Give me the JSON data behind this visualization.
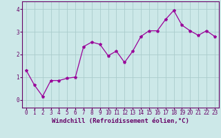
{
  "x": [
    0,
    1,
    2,
    3,
    4,
    5,
    6,
    7,
    8,
    9,
    10,
    11,
    12,
    13,
    14,
    15,
    16,
    17,
    18,
    19,
    20,
    21,
    22,
    23
  ],
  "y": [
    1.3,
    0.65,
    0.15,
    0.85,
    0.85,
    0.95,
    1.0,
    2.35,
    2.55,
    2.45,
    1.95,
    2.15,
    1.65,
    2.15,
    2.8,
    3.05,
    3.05,
    3.55,
    3.95,
    3.3,
    3.05,
    2.85,
    3.05,
    2.8
  ],
  "line_color": "#990099",
  "marker": "*",
  "marker_size": 3,
  "bg_color": "#cce8e8",
  "grid_color": "#aacccc",
  "xlabel": "Windchill (Refroidissement éolien,°C)",
  "xlabel_color": "#660066",
  "xlim": [
    -0.5,
    23.5
  ],
  "ylim": [
    -0.35,
    4.35
  ],
  "yticks": [
    0,
    1,
    2,
    3,
    4
  ],
  "xticks": [
    0,
    1,
    2,
    3,
    4,
    5,
    6,
    7,
    8,
    9,
    10,
    11,
    12,
    13,
    14,
    15,
    16,
    17,
    18,
    19,
    20,
    21,
    22,
    23
  ],
  "tick_color": "#660066",
  "tick_fontsize": 5.5,
  "xlabel_fontsize": 6.5,
  "spine_color": "#660066",
  "line_width": 0.9
}
